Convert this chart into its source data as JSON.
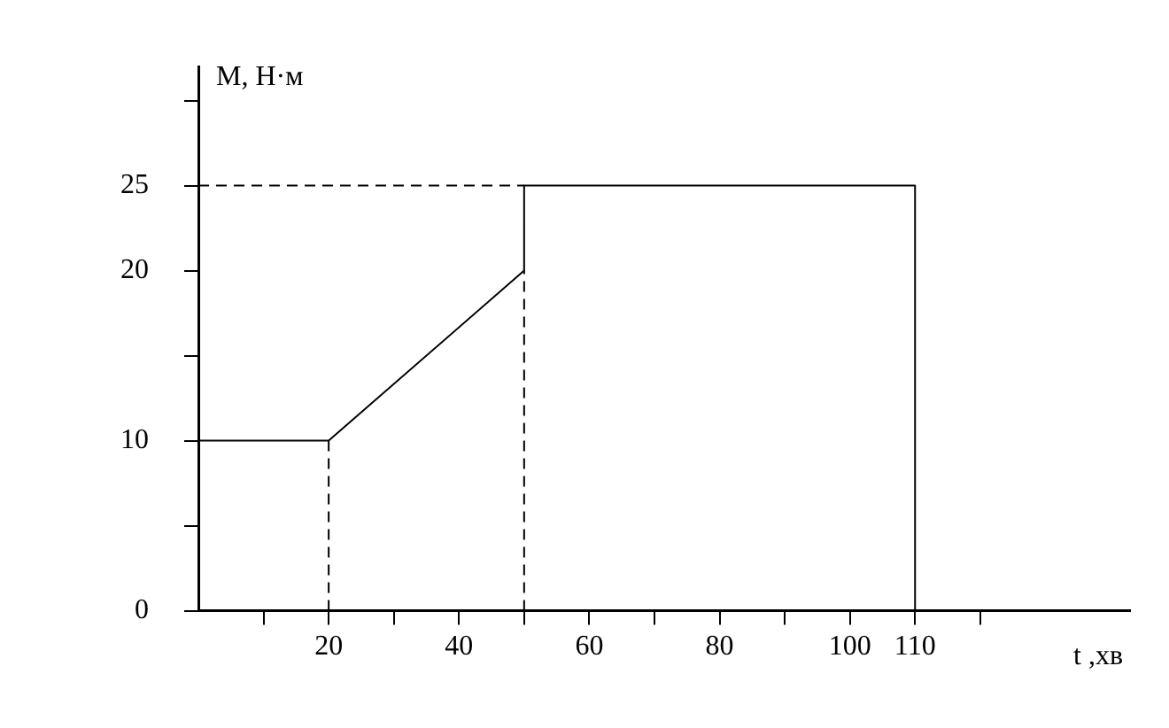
{
  "chart_data": {
    "type": "line",
    "xlabel": "t ,хв",
    "ylabel": "M, Н·м",
    "xlim": [
      0,
      143
    ],
    "ylim": [
      0,
      32
    ],
    "xticks": [
      {
        "value": 10,
        "label": null
      },
      20,
      {
        "value": 30,
        "label": null
      },
      40,
      {
        "value": 50,
        "label": null
      },
      60,
      {
        "value": 70,
        "label": null
      },
      80,
      {
        "value": 90,
        "label": null
      },
      100,
      110,
      {
        "value": 120,
        "label": null
      }
    ],
    "yticks": [
      0,
      {
        "value": 5,
        "label": null
      },
      10,
      {
        "value": 15,
        "label": null
      },
      20,
      25,
      {
        "value": 30,
        "label": null
      }
    ],
    "grid": false,
    "legend": false,
    "marker": "none",
    "series": [
      {
        "color": "#000000",
        "line_style": "solid",
        "x": [
          0,
          20,
          50,
          50,
          110,
          110
        ],
        "values": [
          10,
          10,
          20,
          25,
          25,
          0
        ]
      },
      {
        "color": "#000000",
        "line_style": "dashed",
        "x": [
          20,
          20
        ],
        "values": [
          0,
          10
        ]
      },
      {
        "color": "#000000",
        "line_style": "dashed",
        "x": [
          50,
          50
        ],
        "values": [
          0,
          20
        ]
      },
      {
        "color": "#000000",
        "line_style": "dashed",
        "x": [
          0,
          50
        ],
        "values": [
          25,
          25
        ]
      }
    ]
  }
}
